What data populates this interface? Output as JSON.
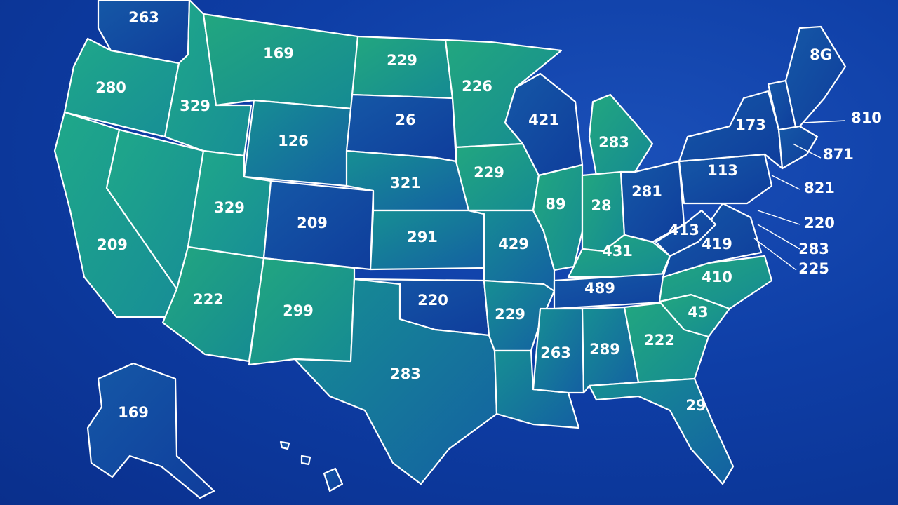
{
  "map": {
    "colors": {
      "background": "#0e3ea6",
      "green": "#1ea98a",
      "blue": "#1346a8",
      "border": "#ffffff"
    },
    "regions": [
      {
        "name": "washington",
        "value": "263"
      },
      {
        "name": "oregon",
        "value": "280"
      },
      {
        "name": "california",
        "value": "209"
      },
      {
        "name": "nevada",
        "value": ""
      },
      {
        "name": "idaho",
        "value": "329"
      },
      {
        "name": "montana",
        "value": "169"
      },
      {
        "name": "wyoming",
        "value": "126"
      },
      {
        "name": "utah",
        "value": "329"
      },
      {
        "name": "colorado",
        "value": "209"
      },
      {
        "name": "arizona",
        "value": "222"
      },
      {
        "name": "new-mexico",
        "value": "299"
      },
      {
        "name": "north-dakota",
        "value": "229"
      },
      {
        "name": "south-dakota",
        "value": "26"
      },
      {
        "name": "nebraska",
        "value": "321"
      },
      {
        "name": "kansas",
        "value": "291"
      },
      {
        "name": "oklahoma",
        "value": "220"
      },
      {
        "name": "texas",
        "value": "283"
      },
      {
        "name": "minnesota",
        "value": "226"
      },
      {
        "name": "iowa",
        "value": "229"
      },
      {
        "name": "missouri",
        "value": "429"
      },
      {
        "name": "arkansas",
        "value": "229"
      },
      {
        "name": "louisiana",
        "value": ""
      },
      {
        "name": "wisconsin",
        "value": "421"
      },
      {
        "name": "illinois",
        "value": "89"
      },
      {
        "name": "michigan",
        "value": "283"
      },
      {
        "name": "indiana",
        "value": "28"
      },
      {
        "name": "ohio",
        "value": "281"
      },
      {
        "name": "kentucky",
        "value": "431"
      },
      {
        "name": "tennessee",
        "value": "489"
      },
      {
        "name": "mississippi",
        "value": "263"
      },
      {
        "name": "alabama",
        "value": "289"
      },
      {
        "name": "georgia",
        "value": "222"
      },
      {
        "name": "florida",
        "value": "29"
      },
      {
        "name": "south-carolina",
        "value": "43"
      },
      {
        "name": "north-carolina",
        "value": "410"
      },
      {
        "name": "virginia",
        "value": "419"
      },
      {
        "name": "west-virginia",
        "value": "413"
      },
      {
        "name": "pennsylvania",
        "value": "113"
      },
      {
        "name": "new-york",
        "value": "173"
      },
      {
        "name": "vermont-nh",
        "value": ""
      },
      {
        "name": "maine",
        "value": "8G"
      },
      {
        "name": "alaska",
        "value": "169"
      },
      {
        "name": "hawaii",
        "value": ""
      }
    ],
    "callouts": [
      {
        "name": "massachusetts",
        "value": "810"
      },
      {
        "name": "connecticut",
        "value": "871"
      },
      {
        "name": "new-jersey",
        "value": "821"
      },
      {
        "name": "delaware",
        "value": "220"
      },
      {
        "name": "maryland",
        "value": "283"
      },
      {
        "name": "dc",
        "value": "225"
      }
    ]
  }
}
